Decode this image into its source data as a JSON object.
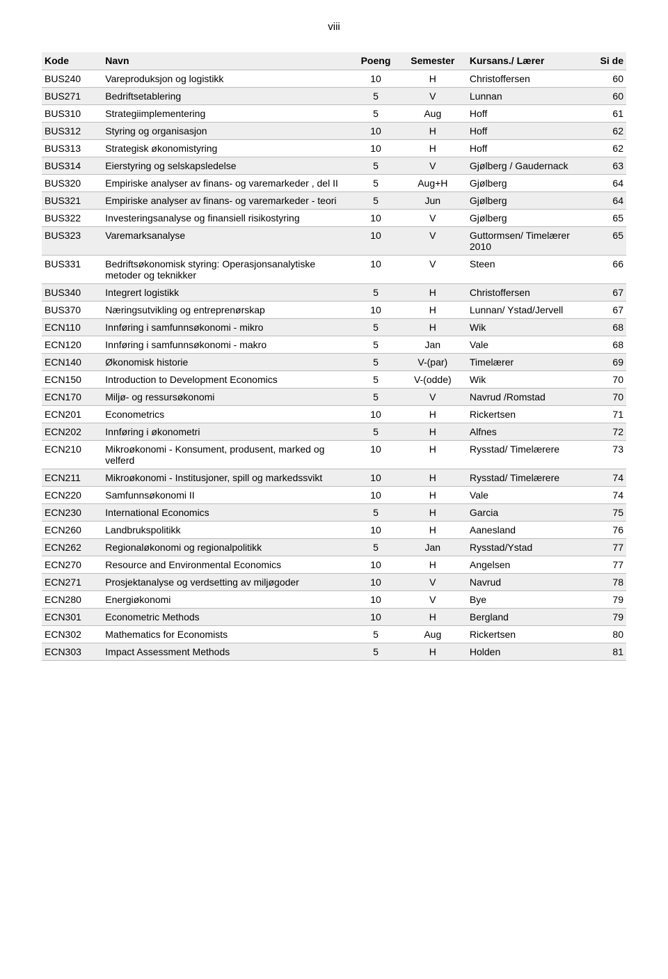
{
  "page_number_label": "viii",
  "headers": {
    "kode": "Kode",
    "navn": "Navn",
    "poeng": "Poeng",
    "semester": "Semester",
    "laerer": "Kursans./ Lærer",
    "side": "Si de"
  },
  "colors": {
    "row_shade": "#eeeeee",
    "border": "#bbbbbb",
    "text": "#000000",
    "background": "#ffffff"
  },
  "font": {
    "family": "Arial",
    "size_pt": 11
  },
  "rows": [
    {
      "kode": "BUS240",
      "navn": "Vareproduksjon og logistikk",
      "poeng": "10",
      "semester": "H",
      "laerer": "Christoffersen",
      "side": "60",
      "shade": false
    },
    {
      "kode": "BUS271",
      "navn": "Bedriftsetablering",
      "poeng": "5",
      "semester": "V",
      "laerer": "Lunnan",
      "side": "60",
      "shade": true
    },
    {
      "kode": "BUS310",
      "navn": "Strategiimplementering",
      "poeng": "5",
      "semester": "Aug",
      "laerer": "Hoff",
      "side": "61",
      "shade": false
    },
    {
      "kode": "BUS312",
      "navn": "Styring og organisasjon",
      "poeng": "10",
      "semester": "H",
      "laerer": "Hoff",
      "side": "62",
      "shade": true
    },
    {
      "kode": "BUS313",
      "navn": "Strategisk økonomistyring",
      "poeng": "10",
      "semester": "H",
      "laerer": "Hoff",
      "side": "62",
      "shade": false
    },
    {
      "kode": "BUS314",
      "navn": "Eierstyring og selskapsledelse",
      "poeng": "5",
      "semester": "V",
      "laerer": "Gjølberg / Gaudernack",
      "side": "63",
      "shade": true
    },
    {
      "kode": "BUS320",
      "navn": "Empiriske analyser av finans- og varemarkeder , del II",
      "poeng": "5",
      "semester": "Aug+H",
      "laerer": "Gjølberg",
      "side": "64",
      "shade": false
    },
    {
      "kode": "BUS321",
      "navn": "Empiriske analyser av finans- og varemarkeder - teori",
      "poeng": "5",
      "semester": "Jun",
      "laerer": "Gjølberg",
      "side": "64",
      "shade": true
    },
    {
      "kode": "BUS322",
      "navn": "Investeringsanalyse og finansiell risikostyring",
      "poeng": "10",
      "semester": "V",
      "laerer": "Gjølberg",
      "side": "65",
      "shade": false
    },
    {
      "kode": "BUS323",
      "navn": "Varemarksanalyse",
      "poeng": "10",
      "semester": "V",
      "laerer": "Guttormsen/ Timelærer 2010",
      "side": "65",
      "shade": true
    },
    {
      "kode": "BUS331",
      "navn": "Bedriftsøkonomisk styring: Operasjonsanalytiske metoder og teknikker",
      "poeng": "10",
      "semester": "V",
      "laerer": "Steen",
      "side": "66",
      "shade": false
    },
    {
      "kode": "BUS340",
      "navn": "Integrert logistikk",
      "poeng": "5",
      "semester": "H",
      "laerer": "Christoffersen",
      "side": "67",
      "shade": true
    },
    {
      "kode": "BUS370",
      "navn": "Næringsutvikling og entreprenørskap",
      "poeng": "10",
      "semester": "H",
      "laerer": "Lunnan/ Ystad/Jervell",
      "side": "67",
      "shade": false
    },
    {
      "kode": "ECN110",
      "navn": "Innføring i samfunnsøkonomi - mikro",
      "poeng": "5",
      "semester": "H",
      "laerer": "Wik",
      "side": "68",
      "shade": true
    },
    {
      "kode": "ECN120",
      "navn": "Innføring i samfunnsøkonomi - makro",
      "poeng": "5",
      "semester": "Jan",
      "laerer": "Vale",
      "side": "68",
      "shade": false
    },
    {
      "kode": "ECN140",
      "navn": "Økonomisk historie",
      "poeng": "5",
      "semester": "V-(par)",
      "laerer": "Timelærer",
      "side": "69",
      "shade": true
    },
    {
      "kode": "ECN150",
      "navn": "Introduction to Development Economics",
      "poeng": "5",
      "semester": "V-(odde)",
      "laerer": "Wik",
      "side": "70",
      "shade": false
    },
    {
      "kode": "ECN170",
      "navn": "Miljø- og ressursøkonomi",
      "poeng": "5",
      "semester": "V",
      "laerer": "Navrud /Romstad",
      "side": "70",
      "shade": true
    },
    {
      "kode": "ECN201",
      "navn": "Econometrics",
      "poeng": "10",
      "semester": "H",
      "laerer": "Rickertsen",
      "side": "71",
      "shade": false
    },
    {
      "kode": "ECN202",
      "navn": "Innføring i økonometri",
      "poeng": "5",
      "semester": "H",
      "laerer": "Alfnes",
      "side": "72",
      "shade": true
    },
    {
      "kode": "ECN210",
      "navn": "Mikroøkonomi  - Konsument, produsent, marked og velferd",
      "poeng": "10",
      "semester": "H",
      "laerer": "Rysstad/ Timelærere",
      "side": "73",
      "shade": false
    },
    {
      "kode": "ECN211",
      "navn": "Mikroøkonomi  - Institusjoner, spill og markedssvikt",
      "poeng": "10",
      "semester": "H",
      "laerer": "Rysstad/ Timelærere",
      "side": "74",
      "shade": true
    },
    {
      "kode": "ECN220",
      "navn": "Samfunnsøkonomi II",
      "poeng": "10",
      "semester": "H",
      "laerer": "Vale",
      "side": "74",
      "shade": false
    },
    {
      "kode": "ECN230",
      "navn": "International Economics",
      "poeng": "5",
      "semester": "H",
      "laerer": "Garcia",
      "side": "75",
      "shade": true
    },
    {
      "kode": "ECN260",
      "navn": "Landbrukspolitikk",
      "poeng": "10",
      "semester": "H",
      "laerer": "Aanesland",
      "side": "76",
      "shade": false
    },
    {
      "kode": "ECN262",
      "navn": "Regionaløkonomi og regionalpolitikk",
      "poeng": "5",
      "semester": "Jan",
      "laerer": "Rysstad/Ystad",
      "side": "77",
      "shade": true
    },
    {
      "kode": "ECN270",
      "navn": "Resource and Environmental Economics",
      "poeng": "10",
      "semester": "H",
      "laerer": "Angelsen",
      "side": "77",
      "shade": false
    },
    {
      "kode": "ECN271",
      "navn": "Prosjektanalyse og verdsetting av miljøgoder",
      "poeng": "10",
      "semester": "V",
      "laerer": "Navrud",
      "side": "78",
      "shade": true
    },
    {
      "kode": "ECN280",
      "navn": "Energiøkonomi",
      "poeng": "10",
      "semester": "V",
      "laerer": "Bye",
      "side": "79",
      "shade": false
    },
    {
      "kode": "ECN301",
      "navn": "Econometric Methods",
      "poeng": "10",
      "semester": "H",
      "laerer": "Bergland",
      "side": "79",
      "shade": true
    },
    {
      "kode": "ECN302",
      "navn": "Mathematics for Economists",
      "poeng": "5",
      "semester": "Aug",
      "laerer": "Rickertsen",
      "side": "80",
      "shade": false
    },
    {
      "kode": "ECN303",
      "navn": "Impact Assessment Methods",
      "poeng": "5",
      "semester": "H",
      "laerer": "Holden",
      "side": "81",
      "shade": true
    }
  ]
}
